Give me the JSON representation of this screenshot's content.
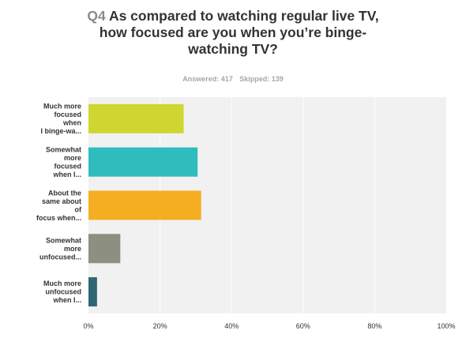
{
  "question": {
    "number": "Q4",
    "text": "As compared to watching regular live TV, how focused are you when you’re binge-watching TV?"
  },
  "stats": {
    "answered": "Answered: 417",
    "skipped": "Skipped: 139"
  },
  "chart_data": {
    "type": "bar",
    "orientation": "horizontal",
    "categories": [
      [
        "Much more",
        "focused",
        "when",
        "I binge-wa..."
      ],
      [
        "Somewhat",
        "more",
        "focused",
        "when I..."
      ],
      [
        "About the",
        "same about",
        "of",
        "focus when..."
      ],
      [
        "Somewhat",
        "more",
        "unfocused..."
      ],
      [
        "Much more",
        "unfocused",
        "when I..."
      ]
    ],
    "values": [
      26.6,
      30.5,
      31.5,
      8.9,
      2.4
    ],
    "colors": [
      "#cfd631",
      "#2ebcbd",
      "#f5ad22",
      "#8d8f80",
      "#2f6674"
    ],
    "xlim": [
      0,
      100
    ],
    "xticks": [
      0,
      20,
      40,
      60,
      80,
      100
    ],
    "xtick_labels": [
      "0%",
      "20%",
      "40%",
      "60%",
      "80%",
      "100%"
    ],
    "grid": true,
    "plot_background": "#f1f1f1"
  }
}
